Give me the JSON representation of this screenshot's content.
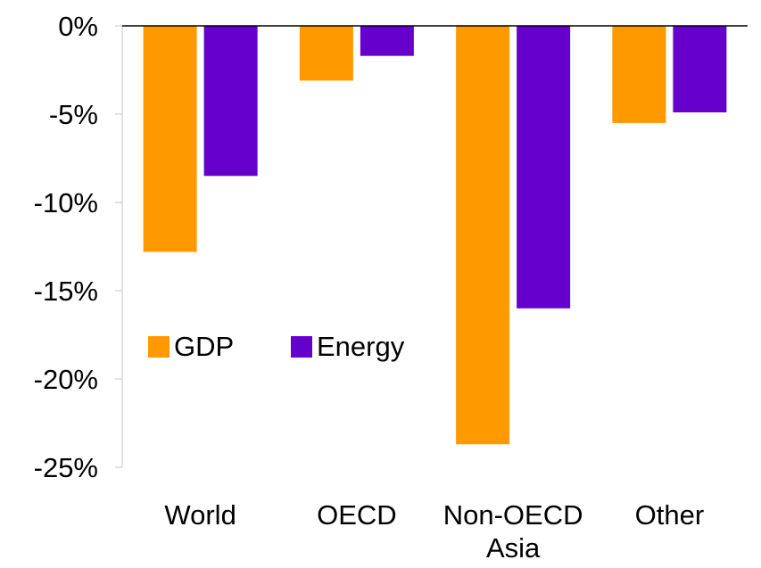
{
  "chart_data": {
    "type": "bar",
    "title": "",
    "xlabel": "",
    "ylabel": "",
    "categories": [
      [
        "World"
      ],
      [
        "OECD"
      ],
      [
        "Non-OECD",
        "Asia"
      ],
      [
        "Other"
      ]
    ],
    "series": [
      {
        "name": "GDP",
        "color": "#FF9900",
        "values": [
          -12.8,
          -3.1,
          -23.7,
          -5.5
        ]
      },
      {
        "name": "Energy",
        "color": "#6600CC",
        "values": [
          -8.5,
          -1.7,
          -16.0,
          -4.9
        ]
      }
    ],
    "ylim": [
      -25,
      0
    ],
    "yticks": [
      0,
      -5,
      -10,
      -15,
      -20,
      -25
    ],
    "ytick_labels": [
      "0%",
      "-5%",
      "-10%",
      "-15%",
      "-20%",
      "-25%"
    ],
    "legend_position": "center-left",
    "grid": false
  }
}
